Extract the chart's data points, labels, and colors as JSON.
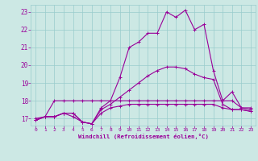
{
  "title": "",
  "xlabel": "Windchill (Refroidissement éolien,°C)",
  "bg_color": "#cce8e4",
  "grid_color": "#99cccc",
  "line_color": "#990099",
  "xlim": [
    -0.5,
    23.5
  ],
  "ylim": [
    16.6,
    23.4
  ],
  "xticks": [
    0,
    1,
    2,
    3,
    4,
    5,
    6,
    7,
    8,
    9,
    10,
    11,
    12,
    13,
    14,
    15,
    16,
    17,
    18,
    19,
    20,
    21,
    22,
    23
  ],
  "yticks": [
    17,
    18,
    19,
    20,
    21,
    22,
    23
  ],
  "hours": [
    0,
    1,
    2,
    3,
    4,
    5,
    6,
    7,
    8,
    9,
    10,
    11,
    12,
    13,
    14,
    15,
    16,
    17,
    18,
    19,
    20,
    21,
    22,
    23
  ],
  "windchill": [
    16.9,
    17.1,
    17.1,
    17.3,
    17.3,
    16.8,
    16.7,
    17.6,
    18.0,
    19.3,
    21.0,
    21.3,
    21.8,
    21.8,
    23.0,
    22.7,
    23.1,
    22.0,
    22.3,
    19.7,
    18.0,
    18.5,
    17.6,
    17.5
  ],
  "temp": [
    17.0,
    17.1,
    18.0,
    18.0,
    18.0,
    18.0,
    18.0,
    18.0,
    18.0,
    18.0,
    18.0,
    18.0,
    18.0,
    18.0,
    18.0,
    18.0,
    18.0,
    18.0,
    18.0,
    18.0,
    18.0,
    18.0,
    17.6,
    17.6
  ],
  "feels_like": [
    16.9,
    17.1,
    17.1,
    17.3,
    17.3,
    16.8,
    16.7,
    17.5,
    17.8,
    18.2,
    18.6,
    19.0,
    19.4,
    19.7,
    19.9,
    19.9,
    19.8,
    19.5,
    19.3,
    19.2,
    17.8,
    17.5,
    17.5,
    17.4
  ],
  "apparent": [
    16.9,
    17.1,
    17.1,
    17.3,
    17.1,
    16.8,
    16.7,
    17.3,
    17.6,
    17.7,
    17.8,
    17.8,
    17.8,
    17.8,
    17.8,
    17.8,
    17.8,
    17.8,
    17.8,
    17.8,
    17.6,
    17.5,
    17.5,
    17.4
  ]
}
